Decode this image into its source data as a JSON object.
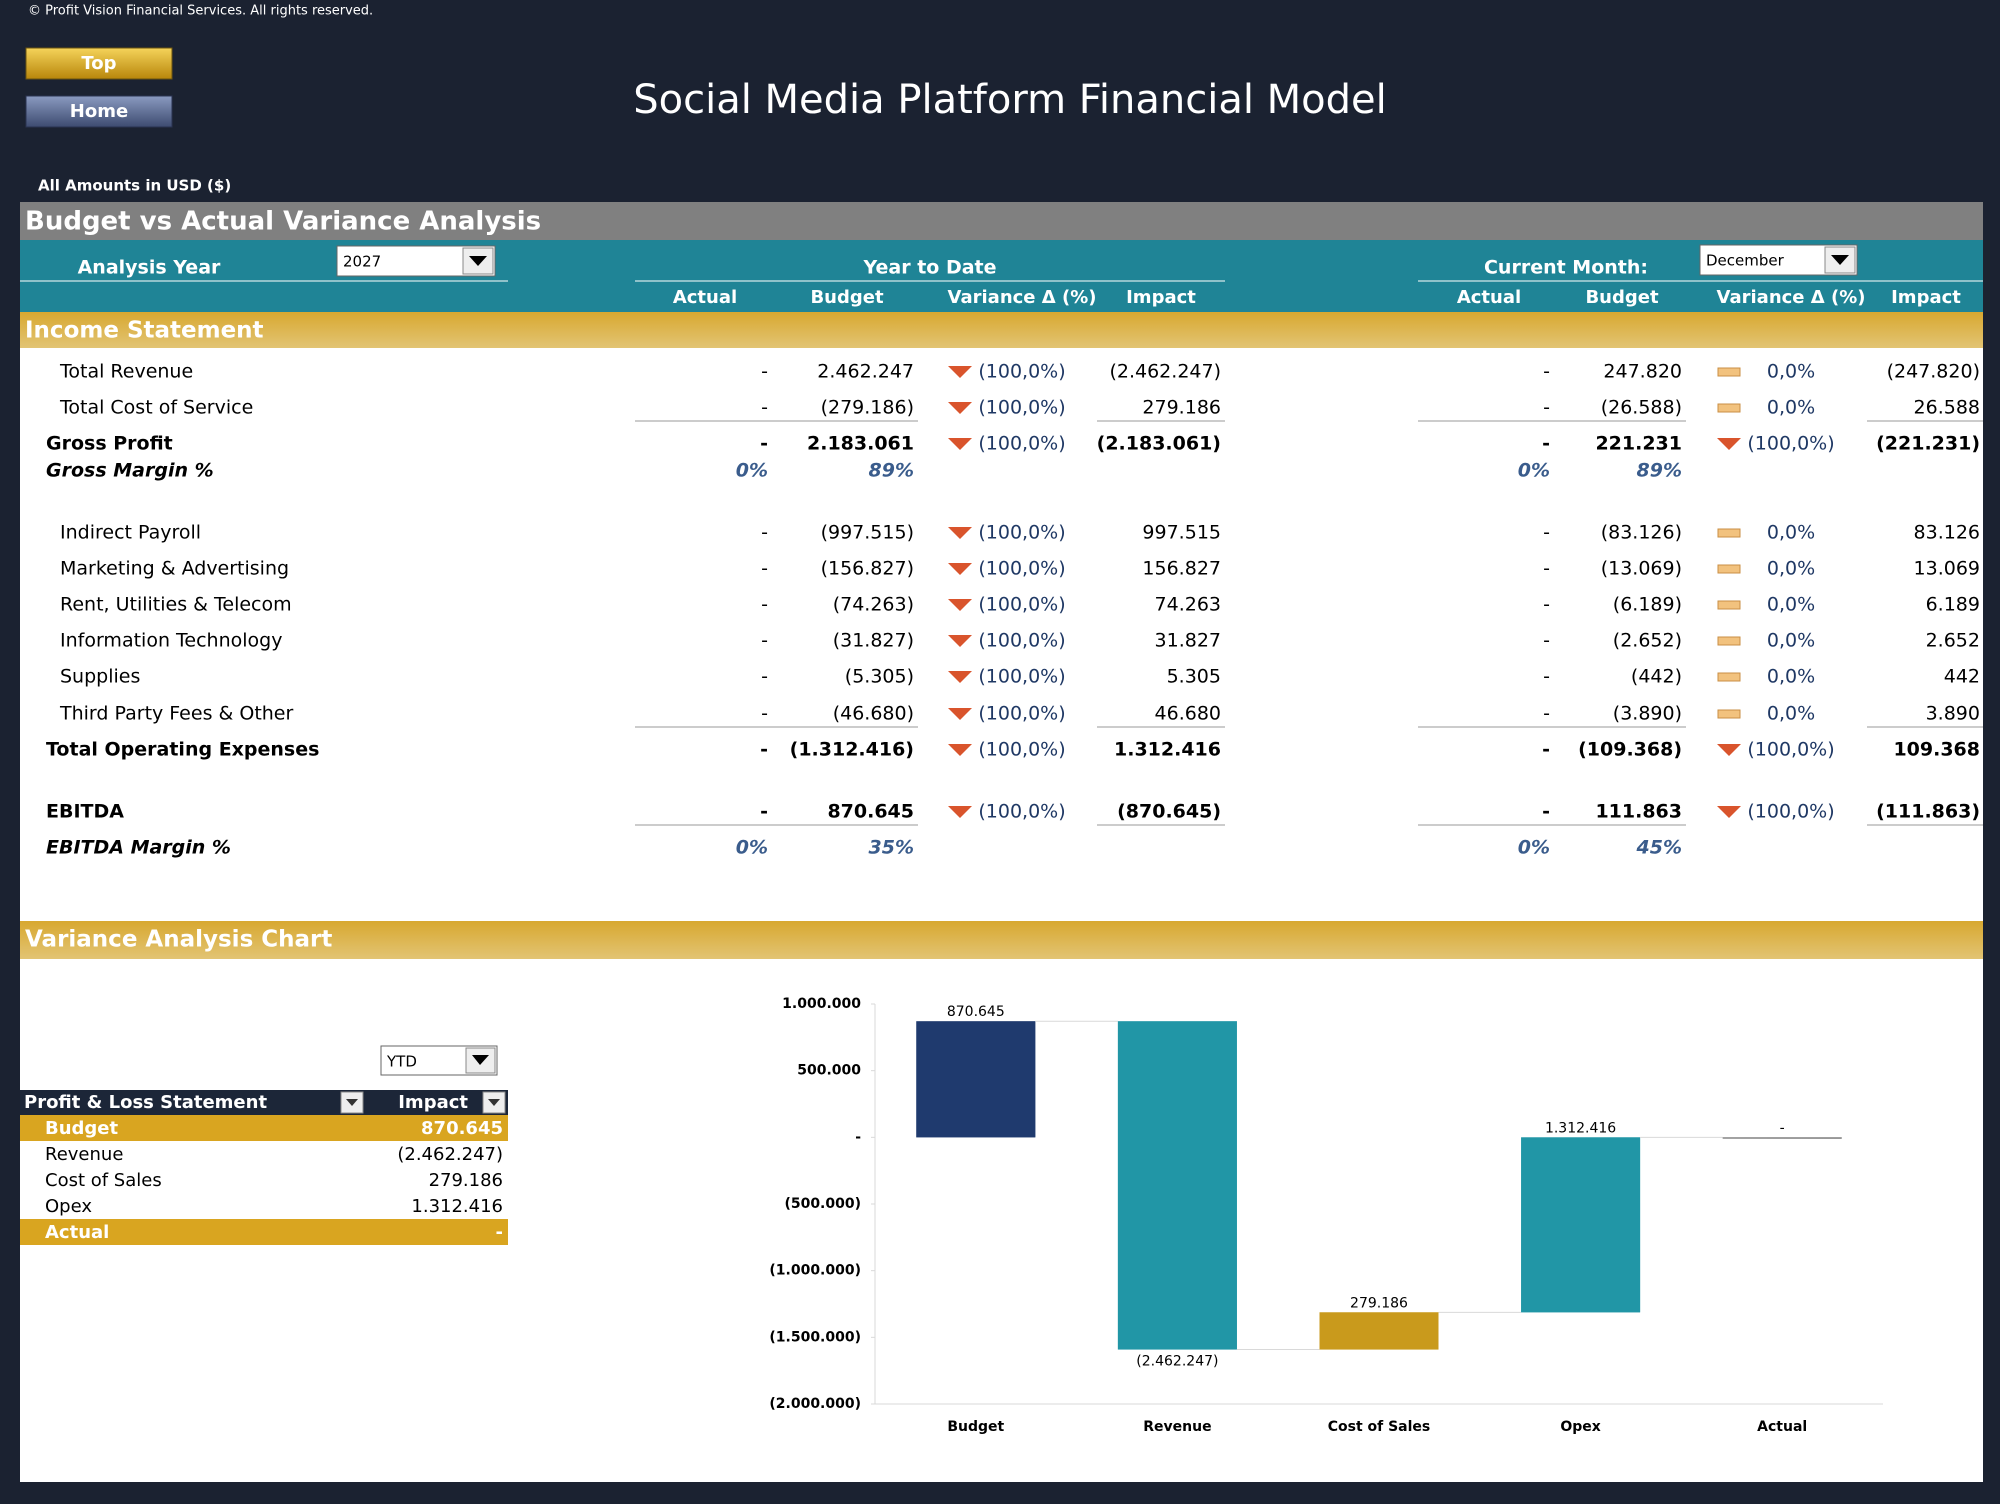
{
  "header": {
    "copyright": "© Profit Vision Financial Services. All rights reserved.",
    "buttons": [
      "Top",
      "Home"
    ],
    "title": "Social Media Platform Financial Model",
    "amounts_note": "All Amounts in  USD ($)"
  },
  "analysis": {
    "section_title": "Budget vs Actual Variance Analysis",
    "year_label": "Analysis Year",
    "year": "2027",
    "ytd_label": "Year to Date",
    "current_month_label": "Current Month:",
    "month": "December",
    "columns": [
      "Actual",
      "Budget",
      "Variance Δ  (%)",
      "Impact"
    ],
    "income_statement_title": "Income Statement",
    "rows": [
      {
        "label": "Total Revenue",
        "style": "item",
        "ytd": [
          "-",
          "2.462.247",
          "(100,0%)",
          "(2.462.247)"
        ],
        "ytd_indicator": "down",
        "cm": [
          "-",
          "247.820",
          "0,0%",
          "(247.820)"
        ],
        "cm_indicator": "flat"
      },
      {
        "label": "Total Cost of Service",
        "style": "item",
        "underline": true,
        "ytd": [
          "-",
          "(279.186)",
          "(100,0%)",
          "279.186"
        ],
        "ytd_indicator": "down",
        "cm": [
          "-",
          "(26.588)",
          "0,0%",
          "26.588"
        ],
        "cm_indicator": "flat"
      },
      {
        "label": "Gross Profit",
        "style": "total",
        "ytd": [
          "-",
          "2.183.061",
          "(100,0%)",
          "(2.183.061)"
        ],
        "ytd_indicator": "down",
        "cm": [
          "-",
          "221.231",
          "(100,0%)",
          "(221.231)"
        ],
        "cm_indicator": "down"
      },
      {
        "label": "Gross Margin %",
        "style": "margin",
        "ytd": [
          "0%",
          "89%"
        ],
        "cm": [
          "0%",
          "89%"
        ]
      },
      {
        "label": "Indirect Payroll",
        "style": "item",
        "ytd": [
          "-",
          "(997.515)",
          "(100,0%)",
          "997.515"
        ],
        "ytd_indicator": "down",
        "cm": [
          "-",
          "(83.126)",
          "0,0%",
          "83.126"
        ],
        "cm_indicator": "flat"
      },
      {
        "label": "Marketing & Advertising",
        "style": "item",
        "ytd": [
          "-",
          "(156.827)",
          "(100,0%)",
          "156.827"
        ],
        "ytd_indicator": "down",
        "cm": [
          "-",
          "(13.069)",
          "0,0%",
          "13.069"
        ],
        "cm_indicator": "flat"
      },
      {
        "label": "Rent, Utilities & Telecom",
        "style": "item",
        "ytd": [
          "-",
          "(74.263)",
          "(100,0%)",
          "74.263"
        ],
        "ytd_indicator": "down",
        "cm": [
          "-",
          "(6.189)",
          "0,0%",
          "6.189"
        ],
        "cm_indicator": "flat"
      },
      {
        "label": "Information Technology",
        "style": "item",
        "ytd": [
          "-",
          "(31.827)",
          "(100,0%)",
          "31.827"
        ],
        "ytd_indicator": "down",
        "cm": [
          "-",
          "(2.652)",
          "0,0%",
          "2.652"
        ],
        "cm_indicator": "flat"
      },
      {
        "label": "Supplies",
        "style": "item",
        "ytd": [
          "-",
          "(5.305)",
          "(100,0%)",
          "5.305"
        ],
        "ytd_indicator": "down",
        "cm": [
          "-",
          "(442)",
          "0,0%",
          "442"
        ],
        "cm_indicator": "flat"
      },
      {
        "label": "Third Party Fees & Other",
        "style": "item",
        "underline": true,
        "ytd": [
          "-",
          "(46.680)",
          "(100,0%)",
          "46.680"
        ],
        "ytd_indicator": "down",
        "cm": [
          "-",
          "(3.890)",
          "0,0%",
          "3.890"
        ],
        "cm_indicator": "flat"
      },
      {
        "label": "Total Operating Expenses",
        "style": "total",
        "ytd": [
          "-",
          "(1.312.416)",
          "(100,0%)",
          "1.312.416"
        ],
        "ytd_indicator": "down",
        "cm": [
          "-",
          "(109.368)",
          "(100,0%)",
          "109.368"
        ],
        "cm_indicator": "down"
      },
      {
        "label": "EBITDA",
        "style": "total",
        "underline": true,
        "ytd": [
          "-",
          "870.645",
          "(100,0%)",
          "(870.645)"
        ],
        "ytd_indicator": "down",
        "cm": [
          "-",
          "111.863",
          "(100,0%)",
          "(111.863)"
        ],
        "cm_indicator": "down"
      },
      {
        "label": "EBITDA Margin %",
        "style": "margin",
        "ytd": [
          "0%",
          "35%"
        ],
        "cm": [
          "0%",
          "45%"
        ]
      }
    ]
  },
  "variance_chart": {
    "section_title": "Variance Analysis Chart",
    "period": "YTD",
    "table": {
      "header": [
        "Profit & Loss Statement",
        "Impact"
      ],
      "rows": [
        [
          "Budget",
          "870.645"
        ],
        [
          "Revenue",
          "(2.462.247)"
        ],
        [
          "Cost of Sales",
          "279.186"
        ],
        [
          "Opex",
          "1.312.416"
        ],
        [
          "Actual",
          "-"
        ]
      ]
    }
  },
  "chart_data": {
    "type": "waterfall",
    "categories": [
      "Budget",
      "Revenue",
      "Cost of Sales",
      "Opex",
      "Actual"
    ],
    "values": [
      870645,
      -2462247,
      279186,
      1312416,
      0
    ],
    "value_labels": [
      "870.645",
      "(2.462.247)",
      "279.186",
      "1.312.416",
      "-"
    ],
    "colors": [
      "#1f3a6e",
      "#2196a6",
      "#c99a1c",
      "#2196a6",
      "#7f7f7f"
    ],
    "ylim": [
      -2000000,
      1000000
    ],
    "yticks": [
      {
        "value": 1000000,
        "label": "1.000.000"
      },
      {
        "value": 500000,
        "label": "500.000"
      },
      {
        "value": 0,
        "label": "-"
      },
      {
        "value": -500000,
        "label": "(500.000)"
      },
      {
        "value": -1000000,
        "label": "(1.000.000)"
      },
      {
        "value": -1500000,
        "label": "(1.500.000)"
      },
      {
        "value": -2000000,
        "label": "(2.000.000)"
      }
    ]
  }
}
